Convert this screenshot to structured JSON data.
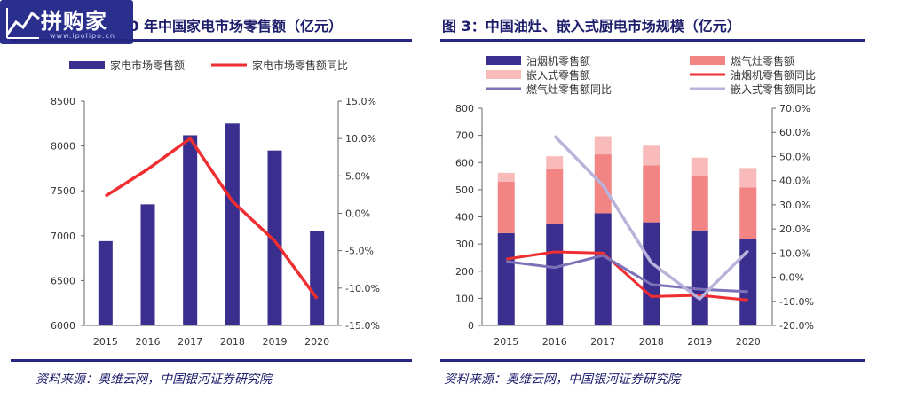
{
  "watermark": {
    "name": "拼购家",
    "url": "www.ipolipo.cn"
  },
  "left": {
    "title": "图 2：2015-2020 年中国家电市场零售额（亿元）",
    "source": "资料来源：奥维云网，中国银河证券研究院"
  },
  "right": {
    "title": "图 3：中国油灶、嵌入式厨电市场规模（亿元）",
    "source": "资料来源：奥维云网，中国银河证券研究院"
  },
  "colors": {
    "navy": "#3a2f8f",
    "red": "#ee2e30",
    "salmon": "#f38484",
    "pink": "#f9baba",
    "purple": "#7d72b8",
    "lavender": "#b9b3db"
  },
  "chart_data": [
    {
      "type": "bar",
      "title": "图 2：2015-2020 年中国家电市场零售额（亿元）",
      "categories": [
        "2015",
        "2016",
        "2017",
        "2018",
        "2019",
        "2020"
      ],
      "series": [
        {
          "name": "家电市场零售额",
          "type": "bar",
          "axis": "left",
          "values": [
            6940,
            7350,
            8120,
            8250,
            7950,
            7050
          ]
        },
        {
          "name": "家电市场零售额同比",
          "type": "line",
          "axis": "right",
          "values": [
            2.3,
            5.9,
            10.0,
            1.6,
            -3.7,
            -11.4
          ]
        }
      ],
      "ylim_left": [
        6000,
        8500
      ],
      "yticks_left": [
        "6000",
        "6500",
        "7000",
        "7500",
        "8000",
        "8500"
      ],
      "ylim_right": [
        -15,
        15
      ],
      "yticks_right": [
        "-15.0%",
        "-10.0%",
        "-5.0%",
        "0.0%",
        "5.0%",
        "10.0%",
        "15.0%"
      ],
      "legend": "top"
    },
    {
      "type": "bar",
      "title": "图 3：中国油灶、嵌入式厨电市场规模（亿元）",
      "categories": [
        "2015",
        "2016",
        "2017",
        "2018",
        "2019",
        "2020"
      ],
      "series": [
        {
          "name": "油烟机零售额",
          "type": "bar",
          "axis": "left",
          "values": [
            340,
            375,
            413,
            380,
            350,
            318
          ]
        },
        {
          "name": "燃气灶零售额",
          "type": "bar",
          "axis": "left",
          "values": [
            190,
            200,
            217,
            210,
            200,
            190
          ]
        },
        {
          "name": "嵌入式零售额",
          "type": "bar",
          "axis": "left",
          "values": [
            32,
            48,
            67,
            72,
            68,
            72
          ]
        },
        {
          "name": "油烟机零售额同比",
          "type": "line",
          "axis": "right",
          "values": [
            7.5,
            10.5,
            10.0,
            -8.0,
            -7.5,
            -9.5
          ]
        },
        {
          "name": "燃气灶零售额同比",
          "type": "line",
          "axis": "right",
          "values": [
            6.5,
            4.0,
            9.0,
            -3.0,
            -5.0,
            -6.0
          ]
        },
        {
          "name": "嵌入式零售额同比",
          "type": "line",
          "axis": "right",
          "values": [
            null,
            58.5,
            38.0,
            6.0,
            -9.0,
            11.0
          ]
        }
      ],
      "ylim_left": [
        0,
        800
      ],
      "yticks_left": [
        "0",
        "100",
        "200",
        "300",
        "400",
        "500",
        "600",
        "700",
        "800"
      ],
      "ylim_right": [
        -20,
        70
      ],
      "yticks_right": [
        "-20.0%",
        "-10.0%",
        "0.0%",
        "10.0%",
        "20.0%",
        "30.0%",
        "40.0%",
        "50.0%",
        "60.0%",
        "70.0%"
      ],
      "legend": "top",
      "stacked": true
    }
  ]
}
